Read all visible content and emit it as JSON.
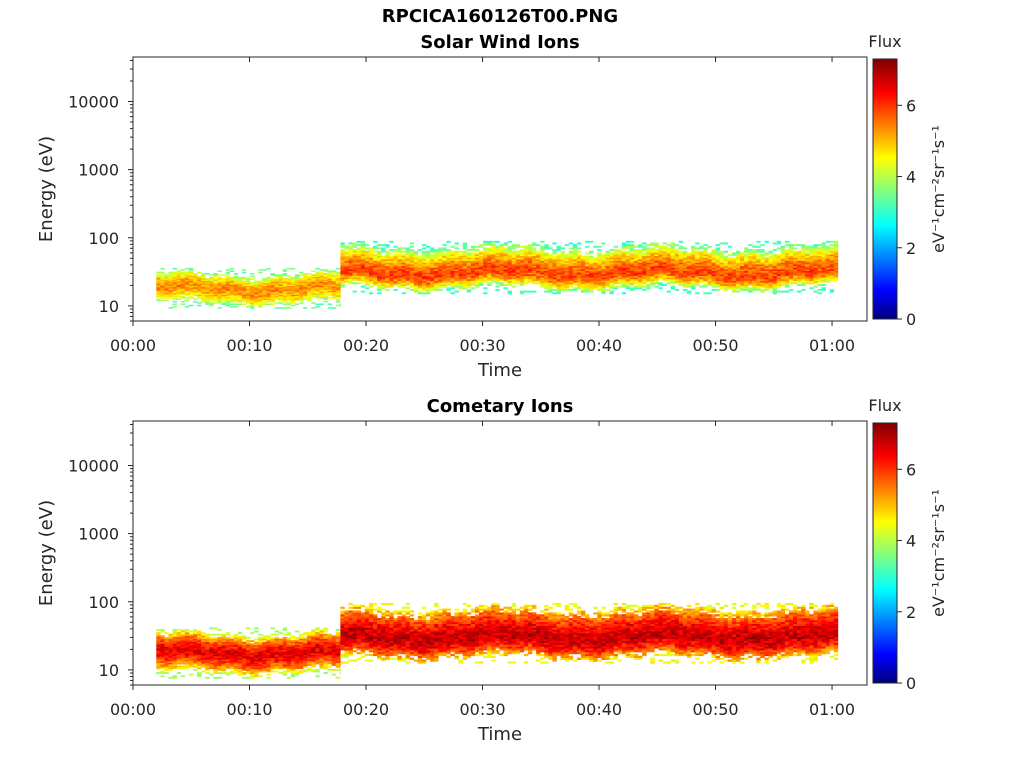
{
  "figure_title": "RPCICA160126T00.PNG",
  "chart_data": [
    {
      "type": "heatmap",
      "title": "Solar Wind Ions",
      "xlabel": "Time",
      "ylabel": "Energy (eV)",
      "x_ticks": [
        "00:00",
        "00:10",
        "00:20",
        "00:30",
        "00:40",
        "00:50",
        "01:00"
      ],
      "xlim_minutes": [
        0,
        63
      ],
      "y_ticks": [
        "10",
        "100",
        "1000",
        "10000"
      ],
      "ylim": [
        6,
        45000
      ],
      "y_scale": "log",
      "grid": false,
      "colorbar": {
        "label_top": "Flux",
        "label_side": "eV⁻¹cm⁻²sr⁻¹s⁻¹",
        "range": [
          0,
          7.3
        ],
        "ticks": [
          "0",
          "2",
          "4",
          "6"
        ],
        "colormap": "jet"
      },
      "data_extent_minutes": [
        2,
        60.5
      ],
      "segments": [
        {
          "start_min": 2,
          "end_min": 17.8,
          "peak_energy_eV": 18,
          "energy_range_eV": [
            11,
            30
          ],
          "peak_flux": 5.4,
          "edge_flux": 3.8
        },
        {
          "start_min": 17.8,
          "end_min": 60.5,
          "peak_energy_eV": 30,
          "energy_range_eV": [
            18,
            75
          ],
          "peak_flux": 5.9,
          "edge_flux": 3.5
        }
      ]
    },
    {
      "type": "heatmap",
      "title": "Cometary Ions",
      "xlabel": "Time",
      "ylabel": "Energy (eV)",
      "x_ticks": [
        "00:00",
        "00:10",
        "00:20",
        "00:30",
        "00:40",
        "00:50",
        "01:00"
      ],
      "xlim_minutes": [
        0,
        63
      ],
      "y_ticks": [
        "10",
        "100",
        "1000",
        "10000"
      ],
      "ylim": [
        6,
        45000
      ],
      "y_scale": "log",
      "grid": false,
      "colorbar": {
        "label_top": "Flux",
        "label_side": "eV⁻¹cm⁻²sr⁻¹s⁻¹",
        "range": [
          0,
          7.3
        ],
        "ticks": [
          "0",
          "2",
          "4",
          "6"
        ],
        "colormap": "jet"
      },
      "data_extent_minutes": [
        2,
        60.5
      ],
      "segments": [
        {
          "start_min": 2,
          "end_min": 17.8,
          "peak_energy_eV": 18,
          "energy_range_eV": [
            9,
            35
          ],
          "peak_flux": 6.6,
          "edge_flux": 4.2
        },
        {
          "start_min": 17.8,
          "end_min": 60.5,
          "peak_energy_eV": 30,
          "energy_range_eV": [
            15,
            80
          ],
          "peak_flux": 6.8,
          "edge_flux": 4.8
        }
      ]
    }
  ]
}
